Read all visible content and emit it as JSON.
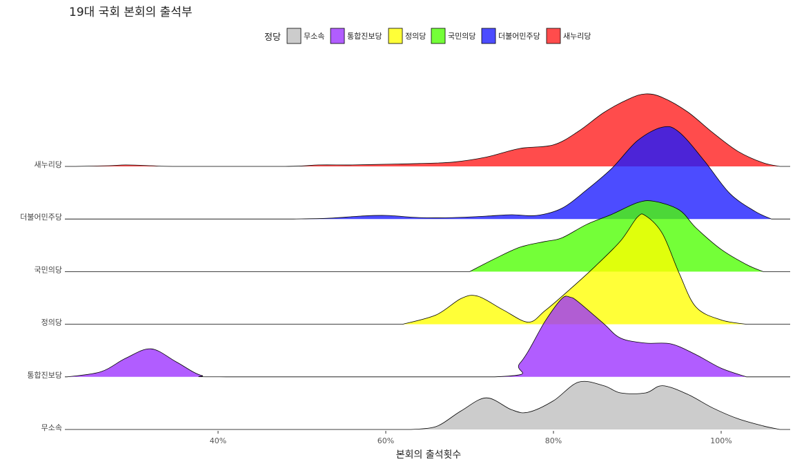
{
  "chart_data": {
    "type": "ridgeline-density",
    "title": "19대 국회 본회의 출석부",
    "xlabel": "본회의 출석횟수",
    "ylabel": "",
    "xlim": [
      0.2,
      1.08
    ],
    "x_ticks": [
      {
        "value": 0.4,
        "label": "40%"
      },
      {
        "value": 0.6,
        "label": "60%"
      },
      {
        "value": 0.8,
        "label": "80%"
      },
      {
        "value": 1.0,
        "label": "100%"
      }
    ],
    "grid": false,
    "legend": {
      "title": "정당",
      "position": "top"
    },
    "series": [
      {
        "name": "무소속",
        "color": "#bebebe",
        "density": [
          [
            0.63,
            0
          ],
          [
            0.66,
            0.08
          ],
          [
            0.69,
            0.52
          ],
          [
            0.72,
            0.88
          ],
          [
            0.75,
            0.55
          ],
          [
            0.77,
            0.48
          ],
          [
            0.8,
            0.8
          ],
          [
            0.83,
            1.32
          ],
          [
            0.86,
            1.22
          ],
          [
            0.88,
            1.02
          ],
          [
            0.91,
            1.02
          ],
          [
            0.93,
            1.22
          ],
          [
            0.96,
            0.98
          ],
          [
            0.99,
            0.6
          ],
          [
            1.02,
            0.3
          ],
          [
            1.05,
            0.1
          ],
          [
            1.07,
            0
          ]
        ]
      },
      {
        "name": "통합진보당",
        "color": "#9b30ff",
        "density": [
          [
            0.22,
            0
          ],
          [
            0.26,
            0.14
          ],
          [
            0.29,
            0.52
          ],
          [
            0.32,
            0.78
          ],
          [
            0.35,
            0.42
          ],
          [
            0.38,
            0.04
          ],
          [
            0.41,
            0
          ],
          [
            0.73,
            0
          ],
          [
            0.76,
            0.38
          ],
          [
            0.79,
            1.55
          ],
          [
            0.81,
            2.18
          ],
          [
            0.82,
            2.22
          ],
          [
            0.83,
            2.08
          ],
          [
            0.86,
            1.48
          ],
          [
            0.88,
            1.08
          ],
          [
            0.91,
            0.94
          ],
          [
            0.94,
            0.92
          ],
          [
            0.97,
            0.62
          ],
          [
            1.0,
            0.24
          ],
          [
            1.03,
            0
          ]
        ]
      },
      {
        "name": "정의당",
        "color": "#ffff00",
        "density": [
          [
            0.62,
            0
          ],
          [
            0.66,
            0.26
          ],
          [
            0.69,
            0.72
          ],
          [
            0.71,
            0.78
          ],
          [
            0.74,
            0.4
          ],
          [
            0.77,
            0.06
          ],
          [
            0.79,
            0.38
          ],
          [
            0.82,
            0.98
          ],
          [
            0.85,
            1.62
          ],
          [
            0.88,
            2.32
          ],
          [
            0.9,
            2.98
          ],
          [
            0.91,
            3.02
          ],
          [
            0.93,
            2.52
          ],
          [
            0.95,
            1.42
          ],
          [
            0.97,
            0.48
          ],
          [
            1.0,
            0.12
          ],
          [
            1.03,
            0
          ]
        ]
      },
      {
        "name": "국민의당",
        "color": "#4dff00",
        "density": [
          [
            0.7,
            0
          ],
          [
            0.73,
            0.36
          ],
          [
            0.76,
            0.68
          ],
          [
            0.79,
            0.84
          ],
          [
            0.81,
            0.94
          ],
          [
            0.84,
            1.32
          ],
          [
            0.87,
            1.6
          ],
          [
            0.9,
            1.92
          ],
          [
            0.92,
            1.96
          ],
          [
            0.95,
            1.72
          ],
          [
            0.97,
            1.22
          ],
          [
            1.0,
            0.62
          ],
          [
            1.03,
            0.2
          ],
          [
            1.05,
            0
          ]
        ]
      },
      {
        "name": "더불어민주당",
        "color": "#1a1aff",
        "density": [
          [
            0.49,
            0
          ],
          [
            0.53,
            0.02
          ],
          [
            0.57,
            0.08
          ],
          [
            0.6,
            0.1
          ],
          [
            0.64,
            0.04
          ],
          [
            0.68,
            0.04
          ],
          [
            0.72,
            0.08
          ],
          [
            0.75,
            0.12
          ],
          [
            0.78,
            0.1
          ],
          [
            0.81,
            0.3
          ],
          [
            0.84,
            0.82
          ],
          [
            0.87,
            1.42
          ],
          [
            0.9,
            2.18
          ],
          [
            0.93,
            2.56
          ],
          [
            0.95,
            2.42
          ],
          [
            0.98,
            1.62
          ],
          [
            1.01,
            0.72
          ],
          [
            1.04,
            0.22
          ],
          [
            1.06,
            0
          ]
        ]
      },
      {
        "name": "새누리당",
        "color": "#ff1a1a",
        "density": [
          [
            0.23,
            0
          ],
          [
            0.27,
            0.02
          ],
          [
            0.29,
            0.04
          ],
          [
            0.32,
            0.02
          ],
          [
            0.35,
            0
          ],
          [
            0.48,
            0
          ],
          [
            0.52,
            0.04
          ],
          [
            0.56,
            0.04
          ],
          [
            0.6,
            0.06
          ],
          [
            0.64,
            0.08
          ],
          [
            0.68,
            0.12
          ],
          [
            0.72,
            0.26
          ],
          [
            0.76,
            0.5
          ],
          [
            0.8,
            0.6
          ],
          [
            0.83,
            0.98
          ],
          [
            0.86,
            1.5
          ],
          [
            0.89,
            1.88
          ],
          [
            0.91,
            2.02
          ],
          [
            0.93,
            1.92
          ],
          [
            0.96,
            1.52
          ],
          [
            0.99,
            0.94
          ],
          [
            1.02,
            0.42
          ],
          [
            1.05,
            0.1
          ],
          [
            1.07,
            0
          ]
        ]
      }
    ],
    "legend_order": [
      "무소속",
      "통합진보당",
      "정의당",
      "국민의당",
      "더불어민주당",
      "새누리당"
    ],
    "row_order_bottom_to_top": [
      "무소속",
      "통합진보당",
      "정의당",
      "국민의당",
      "더불어민주당",
      "새누리당"
    ]
  }
}
